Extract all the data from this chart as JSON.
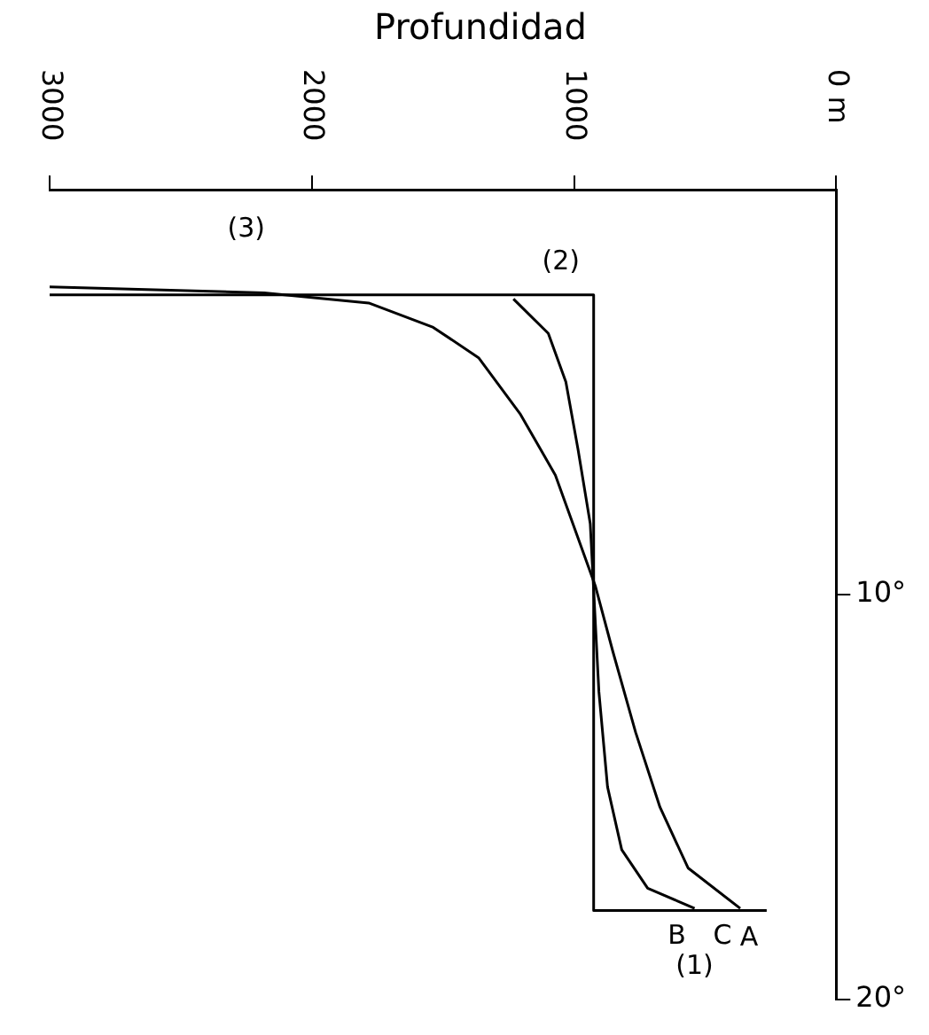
{
  "chart_data": {
    "type": "line",
    "title": "Profundidad",
    "xlim": [
      3000,
      0
    ],
    "xticks": [
      {
        "value": 0,
        "label": "0 m"
      },
      1000,
      2000,
      3000
    ],
    "ylim": [
      20,
      0
    ],
    "yticks": [
      {
        "value": 10,
        "label": "10°"
      },
      {
        "value": 20,
        "label": "20°"
      }
    ],
    "grid": false,
    "legend": false,
    "marker": "none",
    "series": [
      {
        "name": "A",
        "color": "#000000",
        "x": [
          265,
          925,
          925,
          3000
        ],
        "values": [
          17.8,
          17.8,
          2.6,
          2.6
        ]
      },
      {
        "name": "B",
        "color": "#000000",
        "x": [
          540,
          719,
          818,
          872,
          905,
          938,
          985,
          1031,
          1098,
          1231
        ],
        "values": [
          17.75,
          17.25,
          16.3,
          14.75,
          12.4,
          8.25,
          6.4,
          4.75,
          3.55,
          2.7
        ]
      },
      {
        "name": "C",
        "color": "#000000",
        "x": [
          366,
          565,
          672,
          765,
          852,
          918,
          1071,
          1204,
          1364,
          1537,
          1783,
          2182,
          3000
        ],
        "values": [
          17.75,
          16.75,
          15.25,
          13.4,
          11.4,
          9.8,
          7.05,
          5.55,
          4.15,
          3.4,
          2.8,
          2.55,
          2.4
        ]
      }
    ],
    "annotations": [
      "(1)",
      "(2)",
      "(3)"
    ]
  }
}
